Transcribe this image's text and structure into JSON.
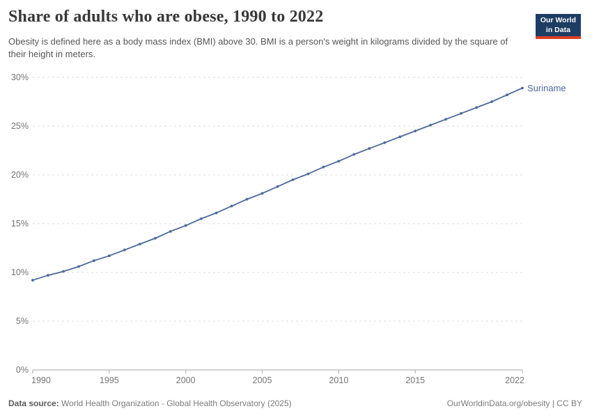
{
  "header": {
    "title": "Share of adults who are obese, 1990 to 2022",
    "subtitle": "Obesity is defined here as a body mass index (BMI) above 30. BMI is a person's weight in kilograms divided by the square of their height in meters.",
    "logo": {
      "line1": "Our World",
      "line2": "in Data"
    }
  },
  "brand": {
    "navy": "#1d3d63",
    "red": "#dc3e26",
    "line_blue": "#4C6A9C",
    "grid_gray": "#dedede",
    "axis_gray": "#a5a5a5",
    "tick_label_gray": "#757575"
  },
  "chart_data": {
    "type": "line",
    "title": "Share of adults who are obese, 1990 to 2022",
    "xlabel": "",
    "ylabel": "",
    "xlim": [
      1990,
      2022
    ],
    "ylim": [
      0,
      30
    ],
    "x_ticks": [
      1990,
      1995,
      2000,
      2005,
      2010,
      2015,
      2022
    ],
    "y_ticks": [
      0,
      5,
      10,
      15,
      20,
      25,
      30
    ],
    "y_unit": "%",
    "grid": "horizontal-dashed",
    "legend_position": "end-of-line-label",
    "x": [
      1990,
      1991,
      1992,
      1993,
      1994,
      1995,
      1996,
      1997,
      1998,
      1999,
      2000,
      2001,
      2002,
      2003,
      2004,
      2005,
      2006,
      2007,
      2008,
      2009,
      2010,
      2011,
      2012,
      2013,
      2014,
      2015,
      2016,
      2017,
      2018,
      2019,
      2020,
      2021,
      2022
    ],
    "series": [
      {
        "name": "Suriname",
        "color": "#4C6A9C",
        "values": [
          9.2,
          9.7,
          10.1,
          10.6,
          11.2,
          11.7,
          12.3,
          12.9,
          13.5,
          14.2,
          14.8,
          15.5,
          16.1,
          16.8,
          17.5,
          18.1,
          18.8,
          19.5,
          20.1,
          20.8,
          21.4,
          22.1,
          22.7,
          23.3,
          23.9,
          24.5,
          25.1,
          25.7,
          26.3,
          26.9,
          27.5,
          28.2,
          28.9
        ]
      }
    ]
  },
  "footer": {
    "datasource_label": "Data source:",
    "datasource_text": " World Health Organization - Global Health Observatory (2025)",
    "rights": "OurWorldinData.org/obesity | CC BY"
  }
}
